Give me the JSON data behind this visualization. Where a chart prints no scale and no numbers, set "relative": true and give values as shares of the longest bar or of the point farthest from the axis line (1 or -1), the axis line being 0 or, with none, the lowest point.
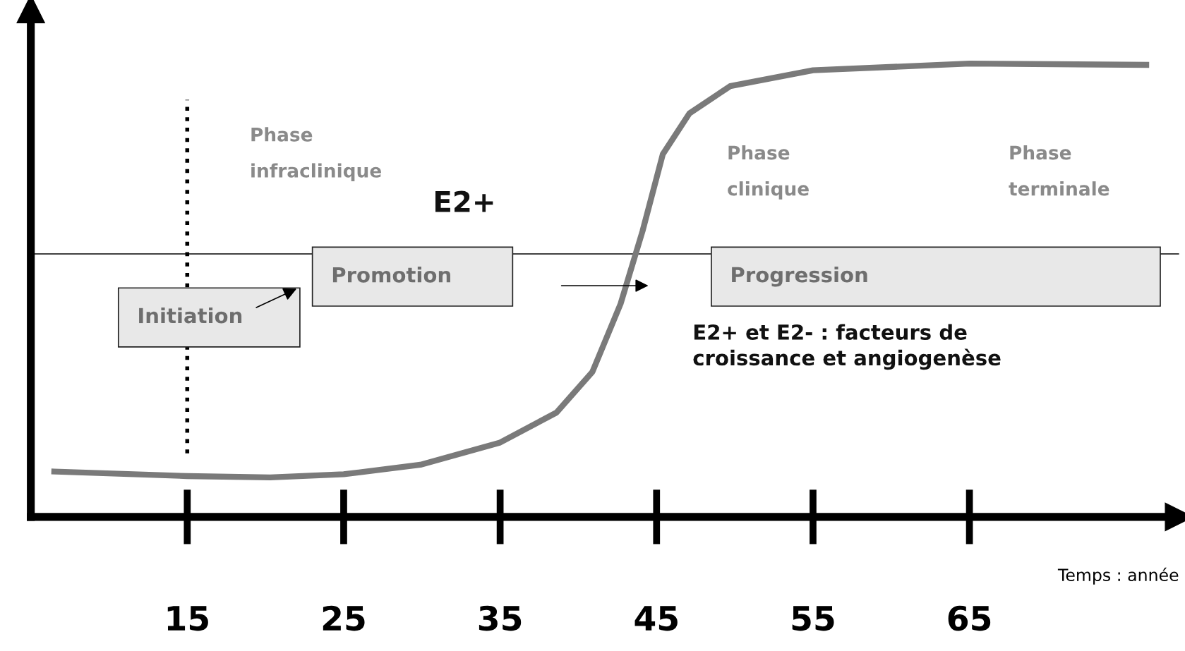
{
  "chart_data": {
    "type": "line",
    "relative": true,
    "xlabel": "Temps : année",
    "x": [
      6.5,
      15,
      20.3,
      25,
      29.9,
      35,
      38.6,
      40.9,
      42.7,
      44.1,
      45.4,
      47.1,
      49.7,
      55,
      65,
      76.3
    ],
    "series": [
      {
        "color": "#7a7a7a",
        "values": [
          0.1,
          0.09,
          0.087,
          0.094,
          0.115,
          0.164,
          0.23,
          0.32,
          0.47,
          0.63,
          0.8,
          0.89,
          0.95,
          0.985,
          1.0,
          0.997
        ]
      }
    ],
    "xlim": [
      5,
      78.4
    ],
    "xticks": [
      15,
      25,
      35,
      45,
      55,
      65
    ],
    "ref_lines": [
      {
        "axis": "y",
        "value": 0.58,
        "color": "#000000",
        "line_style": "solid"
      },
      {
        "axis": "x",
        "value": 15,
        "color": "#000000",
        "line_style": "dotted"
      }
    ],
    "annotations": [
      "Initiation",
      "Promotion",
      "Progression",
      "Phase\n\ninfraclinique",
      "E2+",
      "Phase\n\nclinique",
      "Phase\n\nterminale",
      "E2+ et E2- : facteurs de\ncroissance et angiogenèse"
    ],
    "grid": false,
    "marker": "none",
    "line_style": "solid"
  }
}
